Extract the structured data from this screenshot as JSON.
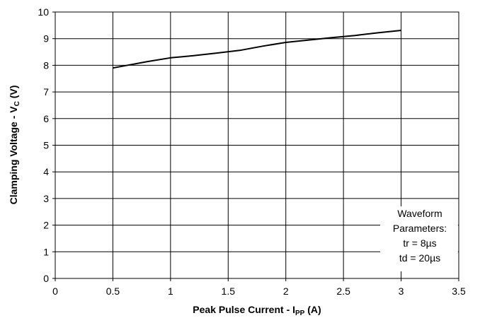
{
  "chart_data": {
    "type": "line",
    "title": "",
    "xlabel": {
      "main": "Peak Pulse Current - I",
      "sub": "PP",
      "unit": " (A)"
    },
    "ylabel": {
      "main": "Clamping Voltage - V",
      "sub": "C",
      "unit": " (V)"
    },
    "xlim": [
      0,
      3.5
    ],
    "ylim": [
      0,
      10
    ],
    "xticks": [
      0,
      0.5,
      1,
      1.5,
      2,
      2.5,
      3,
      3.5
    ],
    "xtick_labels": [
      "0",
      "0.5",
      "1",
      "1.5",
      "2",
      "2.5",
      "3",
      "3.5"
    ],
    "yticks": [
      0,
      1,
      2,
      3,
      4,
      5,
      6,
      7,
      8,
      9,
      10
    ],
    "ytick_labels": [
      "0",
      "1",
      "2",
      "3",
      "4",
      "5",
      "6",
      "7",
      "8",
      "9",
      "10"
    ],
    "grid": true,
    "series": [
      {
        "x": [
          0.5,
          0.6,
          0.8,
          1.0,
          1.2,
          1.4,
          1.6,
          1.8,
          2.0,
          2.2,
          2.4,
          2.6,
          2.8,
          3.0
        ],
        "y": [
          7.9,
          7.98,
          8.14,
          8.28,
          8.36,
          8.46,
          8.56,
          8.72,
          8.86,
          8.95,
          9.04,
          9.12,
          9.22,
          9.31
        ],
        "color": "#000000"
      }
    ],
    "annotation": [
      "Waveform",
      "Parameters:",
      "tr = 8µs",
      "td = 20µs"
    ]
  }
}
